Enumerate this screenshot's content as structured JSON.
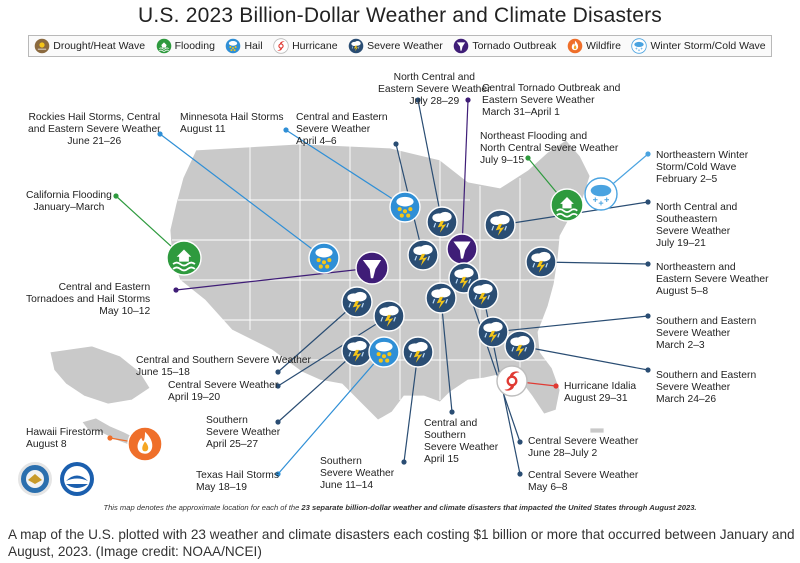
{
  "title": "U.S. 2023 Billion-Dollar Weather and Climate Disasters",
  "legend": [
    {
      "type": "drought",
      "label": "Drought/Heat Wave",
      "icon": "drought-icon",
      "color": "#8b6a3f"
    },
    {
      "type": "flooding",
      "label": "Flooding",
      "icon": "flooding-icon",
      "color": "#2e9a3e"
    },
    {
      "type": "hail",
      "label": "Hail",
      "icon": "hail-icon",
      "color": "#2f8fd6"
    },
    {
      "type": "hurricane",
      "label": "Hurricane",
      "icon": "hurricane-icon",
      "color": "#e03a33"
    },
    {
      "type": "severe",
      "label": "Severe Weather",
      "icon": "severe-weather-icon",
      "color": "#2a4d73"
    },
    {
      "type": "tornado",
      "label": "Tornado Outbreak",
      "icon": "tornado-icon",
      "color": "#3f1d77"
    },
    {
      "type": "wildfire",
      "label": "Wildfire",
      "icon": "wildfire-icon",
      "color": "#ef6f2a"
    },
    {
      "type": "winter",
      "label": "Winter Storm/Cold Wave",
      "icon": "winter-storm-icon",
      "color": "#4aa3e0"
    }
  ],
  "events": [
    {
      "name": "North Central and\nEastern Severe Weather",
      "date": "July 28–29",
      "type": "severe"
    },
    {
      "name": "Central Tornado Outbreak and\nEastern Severe Weather",
      "date": "March 31–April 1",
      "type": "tornado"
    },
    {
      "name": "Rockies Hail Storms, Central\nand Eastern Severe Weather",
      "date": "June 21–26",
      "type": "hail"
    },
    {
      "name": "Minnesota Hail Storms",
      "date": "August 11",
      "type": "hail"
    },
    {
      "name": "Central and Eastern\nSevere Weather",
      "date": "April 4–6",
      "type": "severe"
    },
    {
      "name": "Northeast Flooding and\nNorth Central Severe Weather",
      "date": "July 9–15",
      "type": "flooding"
    },
    {
      "name": "Northeastern Winter\nStorm/Cold Wave",
      "date": "February 2–5",
      "type": "winter"
    },
    {
      "name": "California Flooding",
      "date": "January–March",
      "type": "flooding"
    },
    {
      "name": "North Central and\nSoutheastern\nSevere Weather",
      "date": "July 19–21",
      "type": "severe"
    },
    {
      "name": "Northeastern and\nEastern Severe Weather",
      "date": "August 5–8",
      "type": "severe"
    },
    {
      "name": "Central and Eastern\nTornadoes and Hail Storms",
      "date": "May 10–12",
      "type": "tornado"
    },
    {
      "name": "Southern and Eastern\nSevere Weather",
      "date": "March 2–3",
      "type": "severe"
    },
    {
      "name": "Central and Southern Severe Weather",
      "date": "June 15–18",
      "type": "severe"
    },
    {
      "name": "Central Severe Weather",
      "date": "April 19–20",
      "type": "severe"
    },
    {
      "name": "Southern and Eastern\nSevere Weather",
      "date": "March 24–26",
      "type": "severe"
    },
    {
      "name": "Hurricane Idalia",
      "date": "August 29–31",
      "type": "hurricane"
    },
    {
      "name": "Southern\nSevere Weather",
      "date": "April 25–27",
      "type": "severe"
    },
    {
      "name": "Central and\nSouthern\nSevere Weather",
      "date": "April 15",
      "type": "severe"
    },
    {
      "name": "Central Severe Weather",
      "date": "June 28–July 2",
      "type": "severe"
    },
    {
      "name": "Hawaii Firestorm",
      "date": "August 8",
      "type": "wildfire"
    },
    {
      "name": "Central Severe Weather",
      "date": "May 6–8",
      "type": "severe"
    },
    {
      "name": "Texas Hail Storms",
      "date": "May 18–19",
      "type": "hail"
    },
    {
      "name": "Southern\nSevere Weather",
      "date": "June 11–14",
      "type": "severe"
    }
  ],
  "footnote": {
    "prefix": "This map denotes the approximate location for each of the ",
    "bold": "23 separate billion-dollar weather and climate disasters that impacted the United States through August 2023.",
    "suffix": ""
  },
  "caption": "A map of the U.S. plotted with 23 weather and climate disasters each costing $1 billion or more that occurred between January and August, 2023. (Image credit: NOAA/NCEI)",
  "logos": [
    {
      "name": "department-of-commerce-seal",
      "color": "#2b6fae"
    },
    {
      "name": "noaa-logo",
      "color": "#1b5fae"
    }
  ]
}
